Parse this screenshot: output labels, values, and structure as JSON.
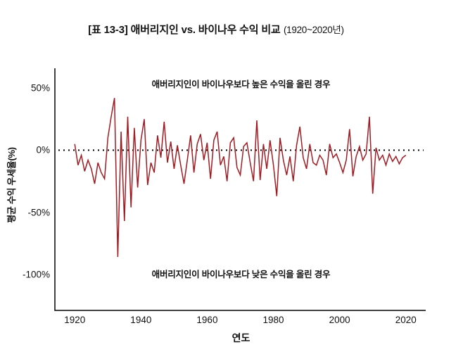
{
  "title": {
    "main": "[표 13-3] 애버리지인 vs. 바이나우 수익 비교",
    "period": "(1920~2020년)"
  },
  "annotations": {
    "top": "애버리지인이 바이나우보다 높은 수익을 올린 경우",
    "bottom": "애버리지인이 바이나우보다 낮은 수익을 올린 경우"
  },
  "chart_data": {
    "type": "line",
    "title": "[표 13-3] 애버리지인 vs. 바이나우 수익 비교 (1920~2020년)",
    "xlabel": "연도",
    "ylabel": "평균 수익 우세율(%)",
    "legend": "none",
    "grid": false,
    "line_color": "#A01B22",
    "zero_line_color": "#000000",
    "zero_line_style": "dotted",
    "xlim": [
      1914,
      2026
    ],
    "ylim": [
      -129,
      66
    ],
    "xticks": [
      1920,
      1940,
      1960,
      1980,
      2000,
      2020
    ],
    "ytick_labels": [
      "50%",
      "0%",
      "-50%",
      "-100%"
    ],
    "ytick_values": [
      50,
      0,
      -50,
      -100
    ],
    "x": [
      1920,
      1921,
      1922,
      1923,
      1924,
      1925,
      1926,
      1927,
      1928,
      1929,
      1930,
      1931,
      1932,
      1933,
      1934,
      1935,
      1936,
      1937,
      1938,
      1939,
      1940,
      1941,
      1942,
      1943,
      1944,
      1945,
      1946,
      1947,
      1948,
      1949,
      1950,
      1951,
      1952,
      1953,
      1954,
      1955,
      1956,
      1957,
      1958,
      1959,
      1960,
      1961,
      1962,
      1963,
      1964,
      1965,
      1966,
      1967,
      1968,
      1969,
      1970,
      1971,
      1972,
      1973,
      1974,
      1975,
      1976,
      1977,
      1978,
      1979,
      1980,
      1981,
      1982,
      1983,
      1984,
      1985,
      1986,
      1987,
      1988,
      1989,
      1990,
      1991,
      1992,
      1993,
      1994,
      1995,
      1996,
      1997,
      1998,
      1999,
      2000,
      2001,
      2002,
      2003,
      2004,
      2005,
      2006,
      2007,
      2008,
      2009,
      2010,
      2011,
      2012,
      2013,
      2014,
      2015,
      2016,
      2017,
      2018,
      2019,
      2020
    ],
    "values": [
      5,
      -12,
      -4,
      -17,
      -8,
      -15,
      -27,
      -10,
      -18,
      -23,
      10,
      27,
      42,
      -86,
      15,
      -57,
      27,
      -46,
      18,
      -30,
      8,
      25,
      -28,
      -10,
      -18,
      12,
      -6,
      23,
      -10,
      7,
      -15,
      4,
      -12,
      -27,
      -8,
      12,
      -18,
      5,
      13,
      -8,
      6,
      -23,
      8,
      15,
      -12,
      -5,
      -25,
      6,
      10,
      -14,
      -20,
      3,
      6,
      -10,
      -25,
      24,
      -24,
      5,
      -15,
      8,
      -12,
      -37,
      10,
      -8,
      -20,
      -5,
      -25,
      4,
      19,
      -6,
      -15,
      5,
      -10,
      -12,
      -4,
      -8,
      -20,
      5,
      -6,
      -3,
      -10,
      -18,
      -8,
      17,
      -21,
      -5,
      3,
      -8,
      -3,
      27,
      -35,
      2,
      -8,
      -4,
      -12,
      -3,
      -9,
      -5,
      -11,
      -6,
      -4
    ]
  }
}
